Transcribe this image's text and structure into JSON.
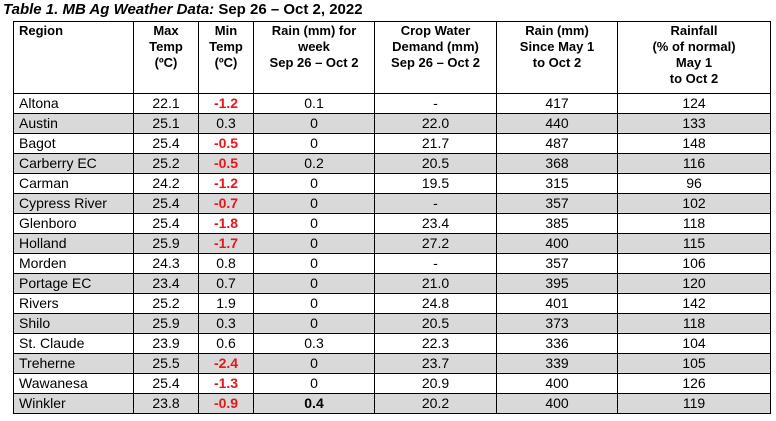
{
  "caption": {
    "prefix": "Table 1. MB Ag Weather Data: ",
    "dates": "Sep 26 – Oct 2, 2022"
  },
  "headers": {
    "region": "Region",
    "max_temp": [
      "Max",
      "Temp",
      "(ºC)"
    ],
    "min_temp": [
      "Min",
      "Temp",
      "(ºC)"
    ],
    "rain_week": [
      "Rain (mm) for",
      "week",
      "Sep 26 – Oct 2"
    ],
    "crop_water": [
      "Crop Water",
      "Demand (mm)",
      "Sep 26 – Oct 2"
    ],
    "rain_since": [
      "Rain (mm)",
      "Since May 1",
      "to Oct 2"
    ],
    "rainfall_pct": [
      "Rainfall",
      "(% of normal)",
      "May 1",
      "to Oct 2"
    ]
  },
  "rows": [
    {
      "region": "Altona",
      "max": "22.1",
      "min": "-1.2",
      "rain_week": "0.1",
      "crop_water": "-",
      "rain_since": "417",
      "pct": "124"
    },
    {
      "region": "Austin",
      "max": "25.1",
      "min": "0.3",
      "rain_week": "0",
      "crop_water": "22.0",
      "rain_since": "440",
      "pct": "133"
    },
    {
      "region": "Bagot",
      "max": "25.4",
      "min": "-0.5",
      "rain_week": "0",
      "crop_water": "21.7",
      "rain_since": "487",
      "pct": "148"
    },
    {
      "region": "Carberry EC",
      "max": "25.2",
      "min": "-0.5",
      "rain_week": "0.2",
      "crop_water": "20.5",
      "rain_since": "368",
      "pct": "116"
    },
    {
      "region": "Carman",
      "max": "24.2",
      "min": "-1.2",
      "rain_week": "0",
      "crop_water": "19.5",
      "rain_since": "315",
      "pct": "96"
    },
    {
      "region": "Cypress River",
      "max": "25.4",
      "min": "-0.7",
      "rain_week": "0",
      "crop_water": "-",
      "rain_since": "357",
      "pct": "102"
    },
    {
      "region": "Glenboro",
      "max": "25.4",
      "min": "-1.8",
      "rain_week": "0",
      "crop_water": "23.4",
      "rain_since": "385",
      "pct": "118"
    },
    {
      "region": "Holland",
      "max": "25.9",
      "min": "-1.7",
      "rain_week": "0",
      "crop_water": "27.2",
      "rain_since": "400",
      "pct": "115"
    },
    {
      "region": "Morden",
      "max": "24.3",
      "min": "0.8",
      "rain_week": "0",
      "crop_water": "-",
      "rain_since": "357",
      "pct": "106"
    },
    {
      "region": "Portage EC",
      "max": "23.4",
      "min": "0.7",
      "rain_week": "0",
      "crop_water": "21.0",
      "rain_since": "395",
      "pct": "120"
    },
    {
      "region": "Rivers",
      "max": "25.2",
      "min": "1.9",
      "rain_week": "0",
      "crop_water": "24.8",
      "rain_since": "401",
      "pct": "142"
    },
    {
      "region": "Shilo",
      "max": "25.9",
      "min": "0.3",
      "rain_week": "0",
      "crop_water": "20.5",
      "rain_since": "373",
      "pct": "118"
    },
    {
      "region": "St. Claude",
      "max": "23.9",
      "min": "0.6",
      "rain_week": "0.3",
      "crop_water": "22.3",
      "rain_since": "336",
      "pct": "104"
    },
    {
      "region": "Treherne",
      "max": "25.5",
      "min": "-2.4",
      "rain_week": "0",
      "crop_water": "23.7",
      "rain_since": "339",
      "pct": "105"
    },
    {
      "region": "Wawanesa",
      "max": "25.4",
      "min": "-1.3",
      "rain_week": "0",
      "crop_water": "20.9",
      "rain_since": "400",
      "pct": "126"
    },
    {
      "region": "Winkler",
      "max": "23.8",
      "min": "-0.9",
      "rain_week": "0.4",
      "crop_water": "20.2",
      "rain_since": "400",
      "pct": "119"
    }
  ],
  "colors": {
    "negative_min_temp": "#e8151b",
    "row_shade": "#d9d9d9"
  }
}
